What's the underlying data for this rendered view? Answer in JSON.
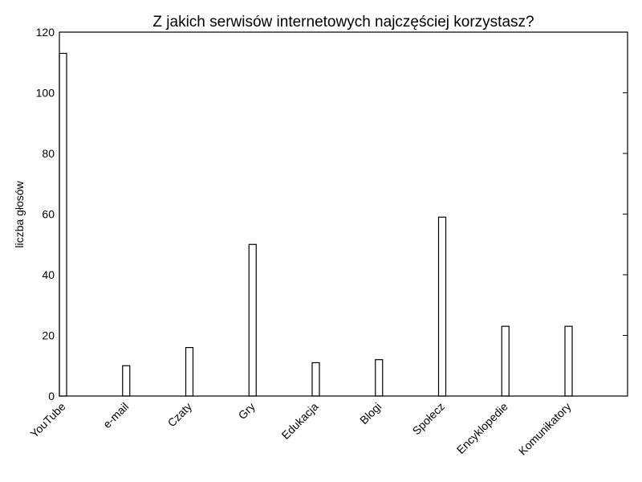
{
  "chart_data": {
    "type": "bar",
    "title": "Z jakich serwisów internetowych najczęściej korzystasz?",
    "xlabel": "",
    "ylabel": "liczba głosów",
    "categories": [
      "YouTube",
      "e-mail",
      "Czaty",
      "Gry",
      "Edukacja",
      "Blogi",
      "Społecz",
      "Encyklopedie",
      "Komunikatory"
    ],
    "values": [
      113,
      10,
      16,
      50,
      11,
      12,
      59,
      23,
      23
    ],
    "ylim": [
      0,
      120
    ],
    "yticks": [
      0,
      20,
      40,
      60,
      80,
      100,
      120
    ],
    "grid": false,
    "colors": {
      "bar_fill": "#ffffff",
      "bar_edge": "#000000"
    }
  }
}
